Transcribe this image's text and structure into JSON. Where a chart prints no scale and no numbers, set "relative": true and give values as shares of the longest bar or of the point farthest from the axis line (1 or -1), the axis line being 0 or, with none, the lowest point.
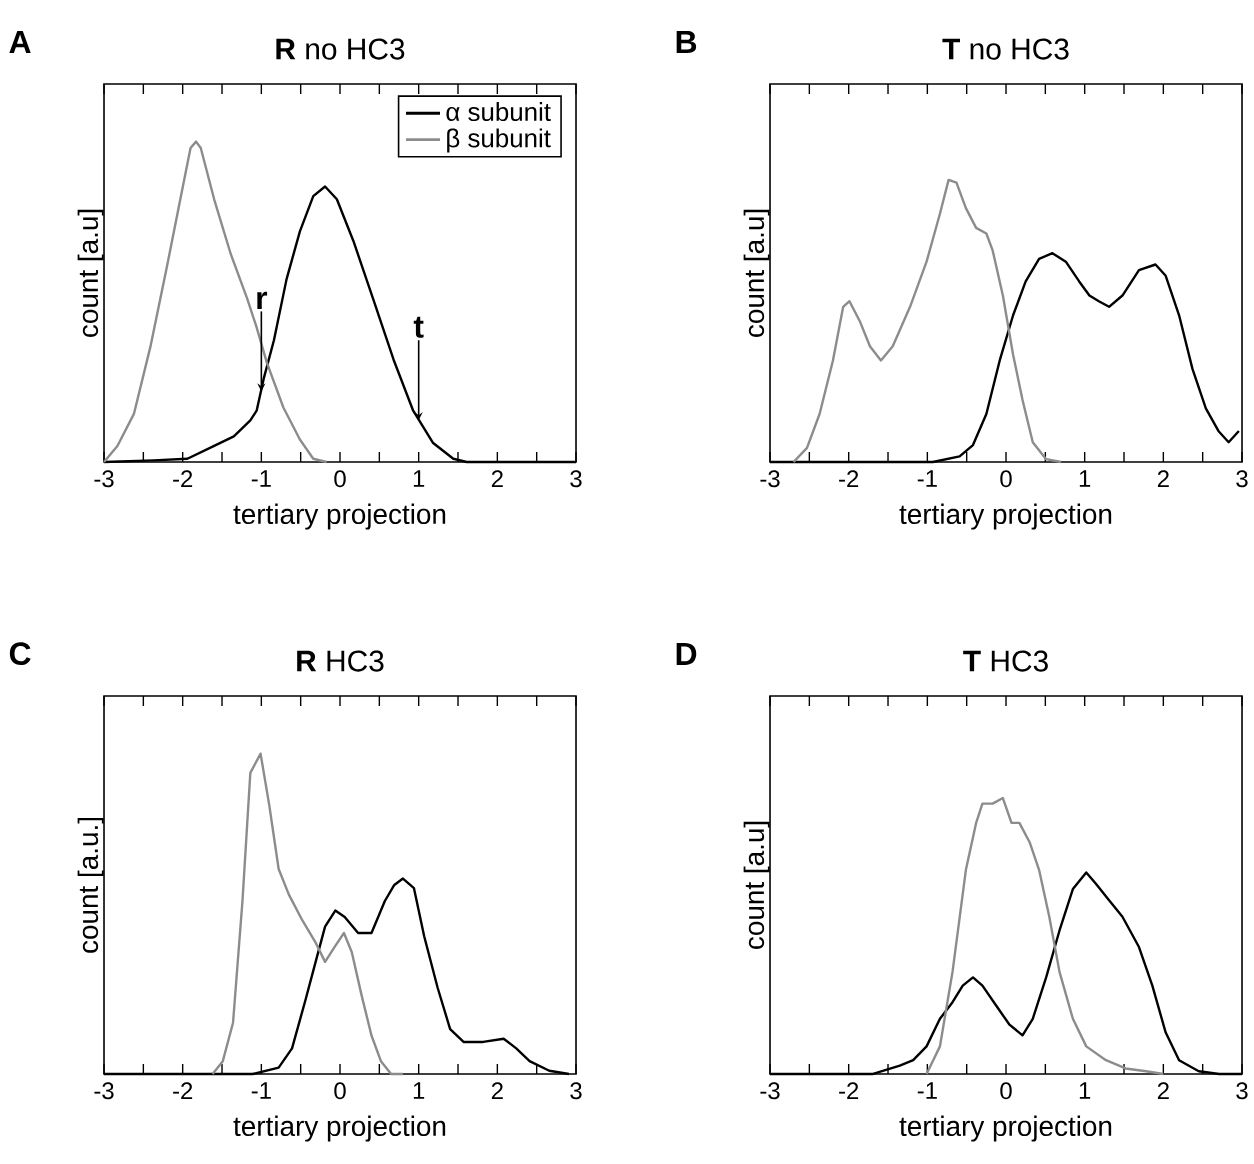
{
  "chart_data": [
    {
      "type": "line",
      "title": "**R** no HC3",
      "xlabel": "tertiary projection",
      "ylabel": "count [a.u]",
      "relative": true,
      "xlim": [
        -3,
        3
      ],
      "xticks": [
        -3,
        {
          "value": -2.5,
          "label": null
        },
        -2,
        {
          "value": -1.5,
          "label": null
        },
        -1,
        {
          "value": -0.5,
          "label": null
        },
        0,
        {
          "value": 0.5,
          "label": null
        },
        1,
        {
          "value": 1.5,
          "label": null
        },
        2,
        {
          "value": 2.5,
          "label": null
        },
        3
      ],
      "legend": "top right",
      "annotations": [
        "A",
        {
          "text": "r",
          "x": -1,
          "y": 0.22
        },
        {
          "text": "t",
          "x": 1,
          "y": 0.13
        }
      ],
      "series": [
        {
          "name": "α subunit",
          "color": "#000000",
          "x": [
            -3,
            -2.37,
            -1.94,
            -1.6,
            -1.35,
            -1.14,
            -1.06,
            -0.97,
            -0.84,
            -0.68,
            -0.51,
            -0.34,
            -0.19,
            -0.04,
            0.17,
            0.42,
            0.68,
            0.93,
            1.18,
            1.44,
            1.61,
            3
          ],
          "values": [
            0,
            0.005,
            0.01,
            0.05,
            0.08,
            0.13,
            0.16,
            0.26,
            0.38,
            0.57,
            0.72,
            0.83,
            0.86,
            0.82,
            0.69,
            0.51,
            0.32,
            0.16,
            0.06,
            0.01,
            0,
            0
          ]
        },
        {
          "name": "β subunit",
          "color": "#8c8c8c",
          "x": [
            -3,
            -2.83,
            -2.62,
            -2.41,
            -2.2,
            -2.03,
            -1.9,
            -1.83,
            -1.77,
            -1.6,
            -1.39,
            -1.18,
            -1.06,
            -0.93,
            -0.72,
            -0.51,
            -0.34,
            -0.17
          ],
          "values": [
            0,
            0.05,
            0.15,
            0.36,
            0.61,
            0.82,
            0.98,
            1,
            0.98,
            0.82,
            0.65,
            0.51,
            0.42,
            0.31,
            0.17,
            0.07,
            0.01,
            0
          ]
        }
      ]
    },
    {
      "type": "line",
      "title": "**T** no HC3",
      "xlabel": "tertiary projection",
      "ylabel": "count [a.u]",
      "relative": true,
      "xlim": [
        -3,
        3
      ],
      "xticks": [
        -3,
        {
          "value": -2.5,
          "label": null
        },
        -2,
        {
          "value": -1.5,
          "label": null
        },
        -1,
        {
          "value": -0.5,
          "label": null
        },
        0,
        {
          "value": 0.5,
          "label": null
        },
        1,
        {
          "value": 1.5,
          "label": null
        },
        2,
        {
          "value": 2.5,
          "label": null
        },
        3
      ],
      "annotations": [
        "B"
      ],
      "series": [
        {
          "color": "#000000",
          "x": [
            -3,
            -0.93,
            -0.59,
            -0.42,
            -0.25,
            -0.08,
            0.09,
            0.25,
            0.42,
            0.59,
            0.76,
            0.93,
            1.06,
            1.18,
            1.31,
            1.48,
            1.69,
            1.9,
            2.03,
            2.2,
            2.37,
            2.54,
            2.7,
            2.83,
            2.96
          ],
          "values": [
            0,
            0,
            0.02,
            0.06,
            0.17,
            0.36,
            0.52,
            0.64,
            0.72,
            0.74,
            0.71,
            0.64,
            0.59,
            0.57,
            0.55,
            0.59,
            0.68,
            0.7,
            0.66,
            0.52,
            0.33,
            0.19,
            0.11,
            0.07,
            0.11
          ]
        },
        {
          "color": "#8c8c8c",
          "x": [
            -2.7,
            -2.53,
            -2.37,
            -2.2,
            -2.07,
            -1.99,
            -1.86,
            -1.73,
            -1.59,
            -1.44,
            -1.22,
            -1.01,
            -0.84,
            -0.73,
            -0.63,
            -0.51,
            -0.38,
            -0.25,
            -0.17,
            -0.04,
            0.09,
            0.21,
            0.34,
            0.51,
            0.7
          ],
          "values": [
            0,
            0.05,
            0.17,
            0.36,
            0.55,
            0.57,
            0.5,
            0.41,
            0.36,
            0.41,
            0.55,
            0.71,
            0.88,
            1,
            0.99,
            0.9,
            0.83,
            0.81,
            0.75,
            0.59,
            0.38,
            0.22,
            0.07,
            0.01,
            0
          ]
        }
      ]
    },
    {
      "type": "line",
      "title": "**R** HC3",
      "xlabel": "tertiary projection",
      "ylabel": "count [a.u.]",
      "relative": true,
      "xlim": [
        -3,
        3
      ],
      "xticks": [
        -3,
        {
          "value": -2.5,
          "label": null
        },
        -2,
        {
          "value": -1.5,
          "label": null
        },
        -1,
        {
          "value": -0.5,
          "label": null
        },
        0,
        {
          "value": 0.5,
          "label": null
        },
        1,
        {
          "value": 1.5,
          "label": null
        },
        2,
        {
          "value": 2.5,
          "label": null
        },
        3
      ],
      "annotations": [
        "C"
      ],
      "series": [
        {
          "color": "#000000",
          "x": [
            -3,
            -1.11,
            -0.78,
            -0.61,
            -0.44,
            -0.31,
            -0.19,
            -0.06,
            0.06,
            0.23,
            0.4,
            0.57,
            0.69,
            0.8,
            0.94,
            1.07,
            1.24,
            1.4,
            1.57,
            1.82,
            2.08,
            2.24,
            2.41,
            2.66,
            2.91
          ],
          "values": [
            0,
            0,
            0.02,
            0.08,
            0.23,
            0.35,
            0.46,
            0.51,
            0.49,
            0.44,
            0.44,
            0.54,
            0.59,
            0.61,
            0.58,
            0.43,
            0.27,
            0.14,
            0.1,
            0.1,
            0.11,
            0.08,
            0.04,
            0.01,
            0
          ]
        },
        {
          "color": "#8c8c8c",
          "x": [
            -1.62,
            -1.49,
            -1.36,
            -1.24,
            -1.14,
            -1.01,
            -0.9,
            -0.78,
            -0.65,
            -0.48,
            -0.31,
            -0.19,
            -0.06,
            0.05,
            0.15,
            0.27,
            0.4,
            0.52,
            0.65,
            0.8
          ],
          "values": [
            0,
            0.04,
            0.16,
            0.54,
            0.94,
            1,
            0.84,
            0.64,
            0.56,
            0.48,
            0.41,
            0.35,
            0.4,
            0.44,
            0.38,
            0.25,
            0.12,
            0.04,
            0,
            0
          ]
        }
      ]
    },
    {
      "type": "line",
      "title": "**T** HC3",
      "xlabel": "tertiary projection",
      "ylabel": "count [a.u]",
      "relative": true,
      "xlim": [
        -3,
        3
      ],
      "xticks": [
        -3,
        {
          "value": -2.5,
          "label": null
        },
        -2,
        {
          "value": -1.5,
          "label": null
        },
        -1,
        {
          "value": -0.5,
          "label": null
        },
        0,
        {
          "value": 0.5,
          "label": null
        },
        1,
        {
          "value": 1.5,
          "label": null
        },
        2,
        {
          "value": 2.5,
          "label": null
        },
        3
      ],
      "annotations": [
        "D"
      ],
      "series": [
        {
          "color": "#000000",
          "x": [
            -3,
            -1.69,
            -1.35,
            -1.18,
            -1.01,
            -0.84,
            -0.68,
            -0.55,
            -0.42,
            -0.3,
            -0.13,
            0.04,
            0.21,
            0.34,
            0.51,
            0.68,
            0.85,
            1.02,
            1.14,
            1.31,
            1.48,
            1.69,
            1.86,
            2.03,
            2.2,
            2.45,
            2.71,
            3
          ],
          "values": [
            0,
            0,
            0.03,
            0.05,
            0.1,
            0.2,
            0.26,
            0.32,
            0.35,
            0.32,
            0.25,
            0.18,
            0.14,
            0.2,
            0.35,
            0.52,
            0.67,
            0.73,
            0.69,
            0.63,
            0.57,
            0.46,
            0.32,
            0.15,
            0.05,
            0.01,
            0,
            0
          ]
        },
        {
          "color": "#8c8c8c",
          "x": [
            -1.01,
            -0.84,
            -0.68,
            -0.51,
            -0.38,
            -0.3,
            -0.17,
            -0.04,
            0.07,
            0.17,
            0.3,
            0.42,
            0.55,
            0.68,
            0.85,
            1.02,
            1.27,
            1.52,
            1.78,
            2
          ],
          "values": [
            0,
            0.1,
            0.37,
            0.74,
            0.91,
            0.98,
            0.98,
            1,
            0.91,
            0.91,
            0.84,
            0.74,
            0.57,
            0.37,
            0.2,
            0.1,
            0.05,
            0.02,
            0.01,
            0
          ]
        }
      ]
    }
  ]
}
